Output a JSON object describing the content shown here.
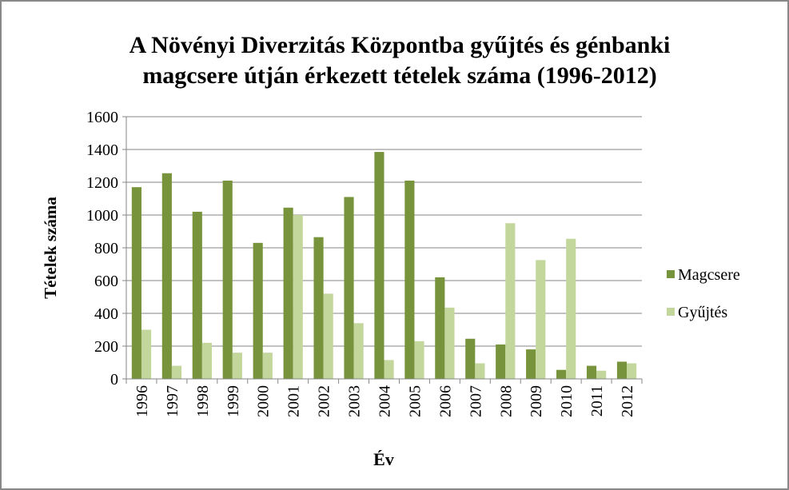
{
  "chart_data": {
    "type": "bar",
    "title": [
      "A Növényi Diverzitás Központba gyűjtés és génbanki",
      "magcsere útján érkezett tételek száma (1996-2012)"
    ],
    "x_label": "Év",
    "y_label": "Tételek száma",
    "categories": [
      "1996",
      "1997",
      "1998",
      "1999",
      "2000",
      "2001",
      "2002",
      "2003",
      "2004",
      "2005",
      "2006",
      "2007",
      "2008",
      "2009",
      "2010",
      "2011",
      "2012"
    ],
    "series": [
      {
        "name": "Magcsere",
        "color": "#77933c",
        "values": [
          1170,
          1255,
          1020,
          1210,
          830,
          1045,
          865,
          1110,
          1385,
          1210,
          620,
          245,
          210,
          180,
          55,
          80,
          105
        ]
      },
      {
        "name": "Gyűjtés",
        "color": "#c3d69b",
        "values": [
          300,
          80,
          220,
          160,
          160,
          1000,
          520,
          340,
          115,
          230,
          435,
          95,
          950,
          725,
          855,
          50,
          95
        ]
      }
    ],
    "ylim": [
      0,
      1600
    ],
    "yticks": [
      0,
      200,
      400,
      600,
      800,
      1000,
      1200,
      1400,
      1600
    ],
    "grid": true,
    "legend": "right"
  }
}
